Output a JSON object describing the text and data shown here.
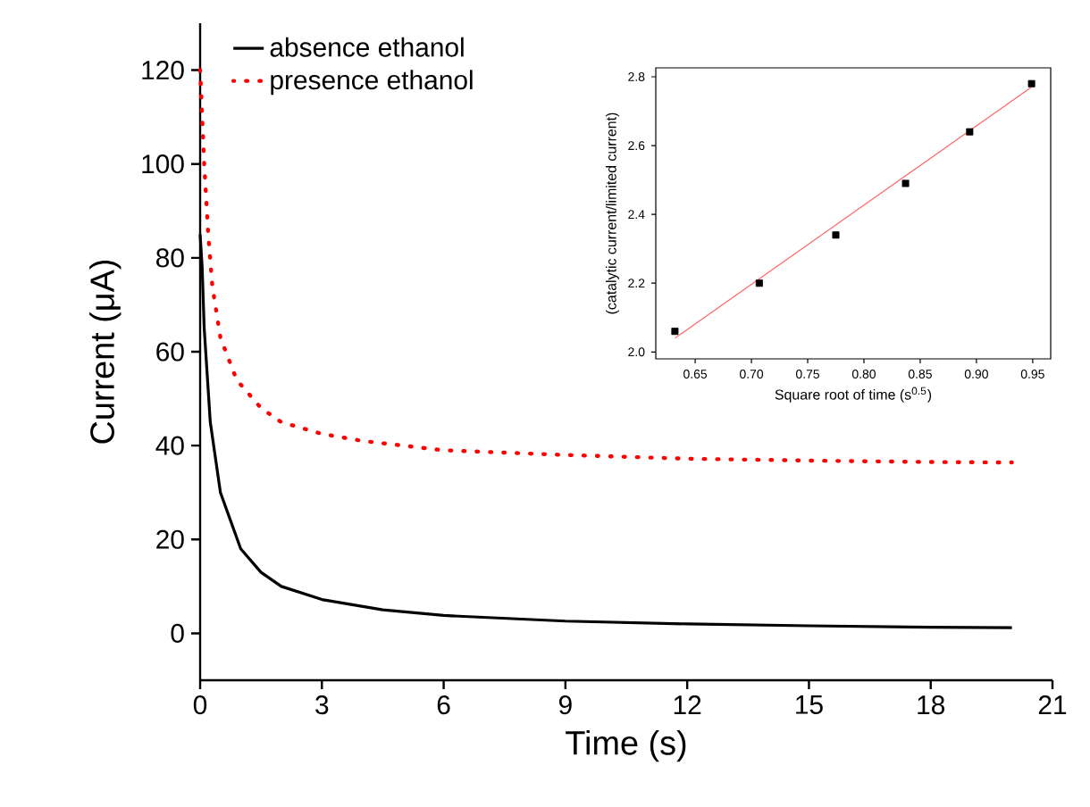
{
  "chart_data": [
    {
      "type": "line",
      "xlabel": "Time (s)",
      "ylabel": "Current (μA)",
      "xlim": [
        0,
        21
      ],
      "ylim": [
        -10,
        130
      ],
      "xticks": [
        0,
        3,
        6,
        9,
        12,
        15,
        18,
        21
      ],
      "yticks": [
        0,
        20,
        40,
        60,
        80,
        100,
        120
      ],
      "legend": "top left",
      "marker": "none",
      "series": [
        {
          "name": "absence ethanol",
          "color": "#000000",
          "line_style": "solid",
          "x": [
            0,
            0.05,
            0.1,
            0.25,
            0.5,
            1,
            1.5,
            2,
            3,
            4.5,
            6,
            9,
            12,
            15,
            18,
            20
          ],
          "values": [
            85,
            78,
            65,
            45,
            30,
            18,
            13,
            10,
            7.2,
            5,
            3.8,
            2.6,
            2,
            1.6,
            1.3,
            1.2
          ]
        },
        {
          "name": "presence ethanol",
          "color": "#ff0000",
          "line_style": "dotted",
          "x": [
            0,
            0.1,
            0.2,
            0.3,
            0.5,
            0.9,
            1.5,
            2,
            3,
            4,
            6,
            9,
            12,
            15,
            18,
            20
          ],
          "values": [
            120,
            100,
            85,
            74,
            63,
            54,
            48,
            45,
            42.5,
            41,
            39,
            38,
            37.2,
            36.8,
            36.5,
            36.4
          ]
        }
      ]
    },
    {
      "type": "scatter",
      "xlabel": "Square root of time (s$^{0.5}$)",
      "ylabel": "(catalytic current/limited current)",
      "xlim": [
        0.615,
        0.966
      ],
      "ylim": [
        1.98,
        2.826
      ],
      "xticks": [
        0.65,
        {
          "value": 0.7,
          "label": "0.70"
        },
        0.75,
        {
          "value": 0.8,
          "label": "0.80"
        },
        0.85,
        {
          "value": 0.9,
          "label": "0.90"
        },
        0.95
      ],
      "yticks": [
        {
          "value": 2.0,
          "label": "2.0"
        },
        {
          "value": 2.2,
          "label": "2.2"
        },
        {
          "value": 2.4,
          "label": "2.4"
        },
        {
          "value": 2.6,
          "label": "2.6"
        },
        {
          "value": 2.8,
          "label": "2.8"
        }
      ],
      "series": [
        {
          "type": "scatter",
          "color": "#000000",
          "marker": "square",
          "x": [
            0.632,
            0.707,
            0.775,
            0.837,
            0.894,
            0.949
          ],
          "values": [
            2.06,
            2.2,
            2.34,
            2.49,
            2.64,
            2.78
          ]
        },
        {
          "type": "line",
          "color": "#ff6666",
          "marker": "none",
          "line_style": "solid",
          "x": [
            0.632,
            0.949
          ],
          "values": [
            2.04,
            2.77
          ]
        }
      ]
    }
  ]
}
